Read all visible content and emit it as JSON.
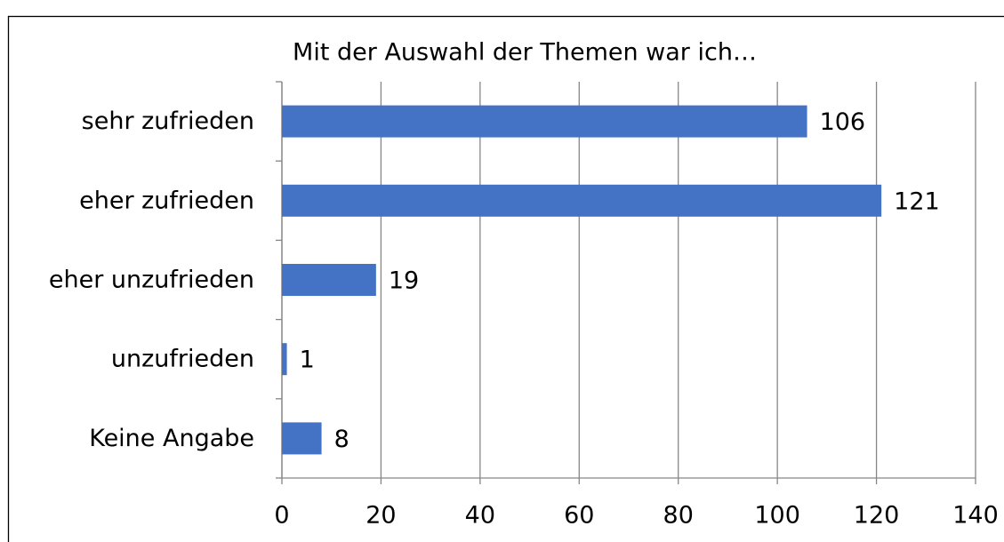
{
  "chart_data": {
    "type": "bar",
    "orientation": "horizontal",
    "title": "Mit der Auswahl der Themen war ich…",
    "categories": [
      "sehr zufrieden",
      "eher zufrieden",
      "eher unzufrieden",
      "unzufrieden",
      "Keine Angabe"
    ],
    "values": [
      106,
      121,
      19,
      1,
      8
    ],
    "color": "#4472c4",
    "xlim": [
      0,
      140
    ],
    "xticks": [
      0,
      20,
      40,
      60,
      80,
      100,
      120,
      140
    ],
    "grid": true
  }
}
